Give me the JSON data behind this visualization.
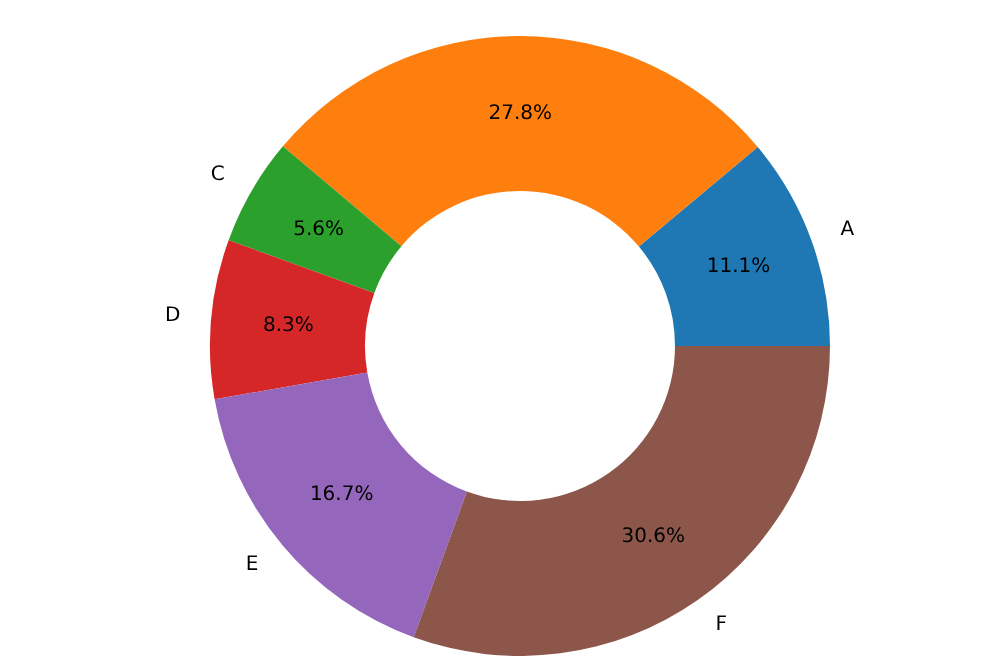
{
  "chart_data": {
    "type": "donut",
    "categories": [
      "A",
      null,
      "C",
      "D",
      "E",
      "F"
    ],
    "values": [
      11.1,
      27.8,
      5.6,
      8.3,
      16.7,
      30.6
    ],
    "value_labels": [
      "11.1%",
      "27.8%",
      "5.6%",
      "8.3%",
      "16.7%",
      "30.6%"
    ],
    "colors": [
      "#1f77b4",
      "#ff7f0e",
      "#2ca02c",
      "#d62728",
      "#9467bd",
      "#8c564b"
    ],
    "legend": false
  }
}
